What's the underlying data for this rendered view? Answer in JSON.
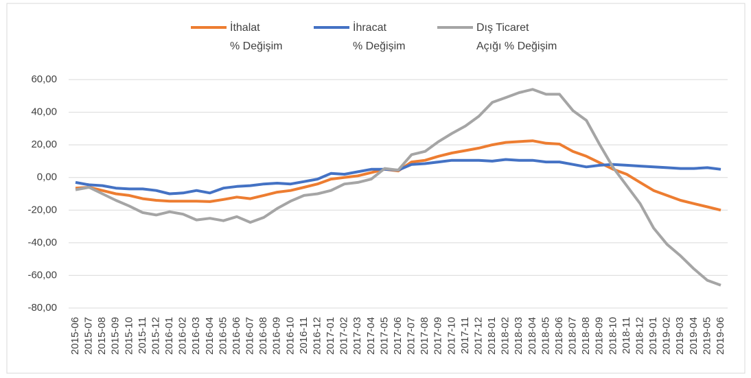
{
  "chart_data": {
    "type": "line",
    "categories": [
      "2015-06",
      "2015-07",
      "2015-08",
      "2015-09",
      "2015-10",
      "2015-11",
      "2015-12",
      "2016-01",
      "2016-02",
      "2016-03",
      "2016-04",
      "2016-05",
      "2016-06",
      "2016-07",
      "2016-08",
      "2016-09",
      "2016-10",
      "2016-11",
      "2016-12",
      "2017-01",
      "2017-02",
      "2017-03",
      "2017-04",
      "2017-05",
      "2017-06",
      "2017-07",
      "2017-08",
      "2017-09",
      "2017-10",
      "2017-11",
      "2017-12",
      "2018-01",
      "2018-02",
      "2018-03",
      "2018-04",
      "2018-05",
      "2018-06",
      "2018-07",
      "2018-08",
      "2018-09",
      "2018-10",
      "2018-11",
      "2018-12",
      "2019-01",
      "2019-02",
      "2019-03",
      "2019-04",
      "2019-05",
      "2019-06"
    ],
    "series": [
      {
        "name": "İthalat\n% Değişim",
        "color": "#ed7d31",
        "values": [
          -6.5,
          -6,
          -8,
          -10,
          -11,
          -13,
          -14,
          -14.5,
          -14.5,
          -14.5,
          -14.8,
          -13.5,
          -12,
          -13,
          -11,
          -9,
          -8,
          -6,
          -4,
          -1,
          0,
          1,
          3,
          5,
          4,
          9.5,
          10.5,
          13,
          15,
          16.5,
          18,
          20,
          21.5,
          22,
          22.5,
          21,
          20.5,
          16,
          13,
          9,
          5,
          2,
          -3,
          -8,
          -11,
          -14,
          -16,
          -18,
          -20
        ]
      },
      {
        "name": "İhracat\n% Değişim",
        "color": "#4472c4",
        "values": [
          -3,
          -4.5,
          -5,
          -6.5,
          -7,
          -7,
          -8,
          -10,
          -9.5,
          -8,
          -9.5,
          -6.5,
          -5.5,
          -5,
          -4,
          -3.5,
          -4,
          -2.5,
          -1,
          2.5,
          2,
          3.5,
          5,
          5,
          4.5,
          8,
          8.5,
          9.5,
          10.5,
          10.5,
          10.5,
          10,
          11,
          10.5,
          10.5,
          9.5,
          9.5,
          8,
          6.5,
          7.5,
          8,
          7.5,
          7,
          6.5,
          6,
          5.5,
          5.5,
          6,
          5
        ]
      },
      {
        "name": "Dış Ticaret\nAçığı % Değişim",
        "color": "#a5a5a5",
        "values": [
          -7.5,
          -6,
          -10,
          -14,
          -17.5,
          -21.5,
          -23,
          -21,
          -22.5,
          -26,
          -25,
          -26.5,
          -24,
          -27.5,
          -24.5,
          -19,
          -14.5,
          -11,
          -10,
          -8,
          -4,
          -3,
          -1,
          5.5,
          4.5,
          14,
          16,
          22,
          27,
          31.5,
          37.5,
          46,
          49,
          52,
          54,
          51,
          51,
          41,
          35,
          20,
          6,
          -5,
          -16,
          -31,
          -41,
          -48,
          -56,
          -63,
          -66
        ]
      }
    ],
    "ylim": [
      -80,
      60
    ],
    "yticks": [
      {
        "value": -80,
        "label": "-80,00"
      },
      {
        "value": -60,
        "label": "-60,00"
      },
      {
        "value": -40,
        "label": "-40,00"
      },
      {
        "value": -20,
        "label": "-20,00"
      },
      {
        "value": 0,
        "label": "0,00"
      },
      {
        "value": 20,
        "label": "20,00"
      },
      {
        "value": 40,
        "label": "40,00"
      },
      {
        "value": 60,
        "label": "60,00"
      }
    ],
    "grid": true,
    "legend": "top"
  }
}
